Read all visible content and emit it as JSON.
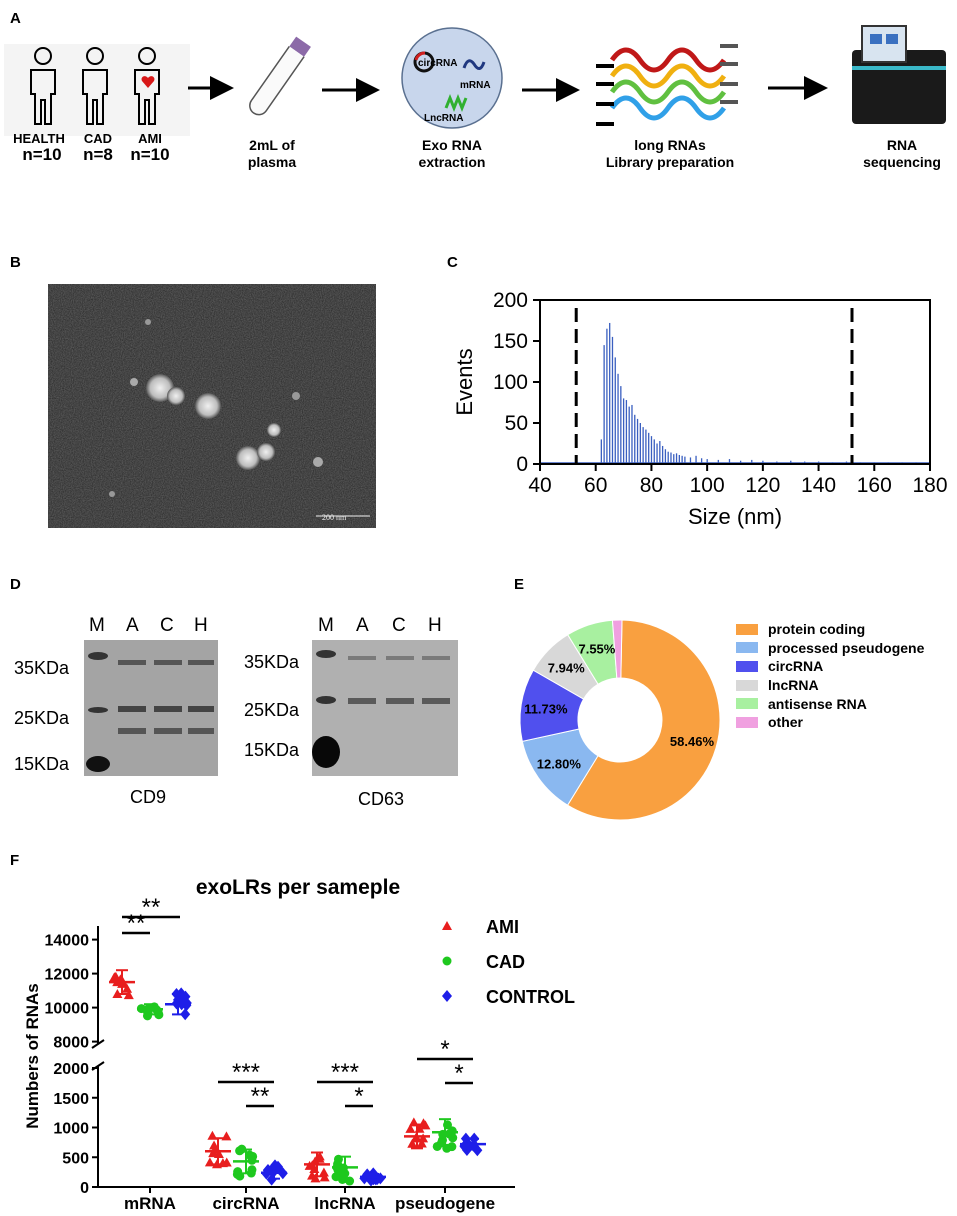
{
  "panels": {
    "a": "A",
    "b": "B",
    "c": "C",
    "d": "D",
    "e": "E",
    "f": "F"
  },
  "workflow": {
    "groups": [
      {
        "name": "HEALTH",
        "n": "n=10"
      },
      {
        "name": "CAD",
        "n": "n=8"
      },
      {
        "name": "AMI",
        "n": "n=10"
      }
    ],
    "plasma": "2mL of\nplasma",
    "exo_labels": {
      "circ": "circRNA",
      "m": "mRNA",
      "lnc": "LncRNA"
    },
    "extraction": "Exo RNA\nextraction",
    "library": "long RNAs\nLibrary preparation",
    "sequencing": "RNA\nsequencing"
  },
  "tem": {
    "scale_bar": "200 nm"
  },
  "nta_chart": {
    "type": "bar",
    "xlabel": "Size (nm)",
    "ylabel": "Events",
    "xlim": [
      40,
      180
    ],
    "ylim": [
      0,
      200
    ],
    "xticks": [
      40,
      60,
      80,
      100,
      120,
      140,
      160,
      180
    ],
    "yticks": [
      0,
      50,
      100,
      150,
      200
    ],
    "gates": [
      53,
      152
    ],
    "x": [
      62,
      63,
      64,
      65,
      66,
      67,
      68,
      69,
      70,
      71,
      72,
      73,
      74,
      75,
      76,
      77,
      78,
      79,
      80,
      81,
      82,
      83,
      84,
      85,
      86,
      87,
      88,
      89,
      90,
      91,
      92,
      94,
      96,
      98,
      100,
      104,
      108,
      112,
      116,
      120,
      125,
      130,
      135,
      140,
      145,
      150,
      155,
      160,
      165,
      170,
      175
    ],
    "values": [
      30,
      145,
      165,
      172,
      155,
      130,
      110,
      95,
      80,
      78,
      70,
      72,
      60,
      55,
      50,
      45,
      42,
      38,
      34,
      30,
      25,
      28,
      22,
      18,
      15,
      14,
      12,
      13,
      11,
      10,
      9,
      8,
      10,
      7,
      6,
      5,
      6,
      4,
      5,
      4,
      3,
      4,
      3,
      3,
      2,
      3,
      2,
      2,
      2,
      2,
      2
    ]
  },
  "western": {
    "cd9": {
      "lanes": [
        "M",
        "A",
        "C",
        "H"
      ],
      "markers": [
        "35KDa",
        "25KDa",
        "15KDa"
      ],
      "caption": "CD9"
    },
    "cd63": {
      "lanes": [
        "M",
        "A",
        "C",
        "H"
      ],
      "markers": [
        "35KDa",
        "25KDa",
        "15KDa"
      ],
      "caption": "CD63"
    }
  },
  "pie_chart": {
    "type": "pie",
    "slices": [
      {
        "label": "protein coding",
        "value": 58.46,
        "text": "58.46%",
        "color": "#f9a040"
      },
      {
        "label": "processed pseudogene",
        "value": 12.8,
        "text": "12.80%",
        "color": "#8ab8f0"
      },
      {
        "label": "circRNA",
        "value": 11.73,
        "text": "11.73%",
        "color": "#5050ee"
      },
      {
        "label": "lncRNA",
        "value": 7.94,
        "text": "7.94%",
        "color": "#d8d8d8"
      },
      {
        "label": "antisense RNA",
        "value": 7.55,
        "text": "7.55%",
        "color": "#a8f0a0"
      },
      {
        "label": "other",
        "value": 1.52,
        "text": "",
        "color": "#f0a0e0"
      }
    ]
  },
  "scatter_chart": {
    "type": "scatter",
    "title": "exoLRs per sameple",
    "ylabel": "Numbers of RNAs",
    "categories": [
      "mRNA",
      "circRNA",
      "lncRNA",
      "pseudogene"
    ],
    "upper_yticks": [
      8000,
      10000,
      12000,
      14000
    ],
    "lower_yticks": [
      0,
      500,
      1000,
      1500,
      2000
    ],
    "legend": [
      {
        "name": "AMI",
        "color": "#e81e1e",
        "marker": "triangle"
      },
      {
        "name": "CAD",
        "color": "#1ec81e",
        "marker": "circle"
      },
      {
        "name": "CONTROL",
        "color": "#1e1ee8",
        "marker": "diamond"
      }
    ],
    "series": [
      {
        "name": "AMI",
        "means": [
          11500,
          600,
          380,
          850
        ],
        "sd": [
          700,
          220,
          200,
          200
        ]
      },
      {
        "name": "CAD",
        "means": [
          9900,
          430,
          330,
          920
        ],
        "sd": [
          300,
          200,
          180,
          220
        ]
      },
      {
        "name": "CONTROL",
        "means": [
          10200,
          240,
          170,
          720
        ],
        "sd": [
          600,
          100,
          50,
          90
        ]
      }
    ],
    "significance": [
      {
        "text": "**"
      },
      {
        "text": "**"
      },
      {
        "text": "***"
      },
      {
        "text": "**"
      },
      {
        "text": "***"
      },
      {
        "text": "*"
      },
      {
        "text": "*"
      },
      {
        "text": "*"
      }
    ]
  }
}
